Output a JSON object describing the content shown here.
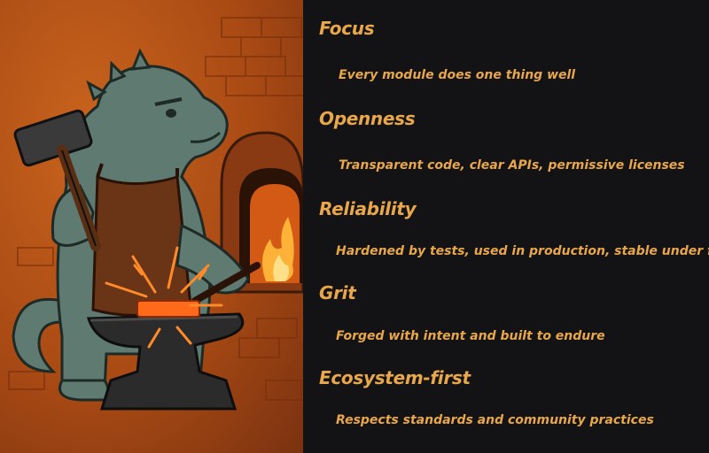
{
  "illustration": {
    "subject": "blacksmith-dinosaur-illustration",
    "colors": {
      "background": "#b4541a",
      "brick": "#8e3c12",
      "skin": "#5f7a70",
      "apron": "#6a3416",
      "anvil": "#2b2b2b",
      "hot_metal": "#ff6a1a",
      "fire": "#ffb238"
    }
  },
  "values": [
    {
      "title": "Focus",
      "description": "Every module does one thing well"
    },
    {
      "title": "Openness",
      "description": "Transparent code, clear APIs, permissive licenses"
    },
    {
      "title": "Reliability",
      "description": "Hardened by tests, used in production, stable under fire"
    },
    {
      "title": "Grit",
      "description": "Forged with intent and built to endure"
    },
    {
      "title": "Ecosystem-first",
      "description": "Respects standards and community practices"
    }
  ],
  "accent_color": "#e8a74a",
  "panel_background": "#131214"
}
